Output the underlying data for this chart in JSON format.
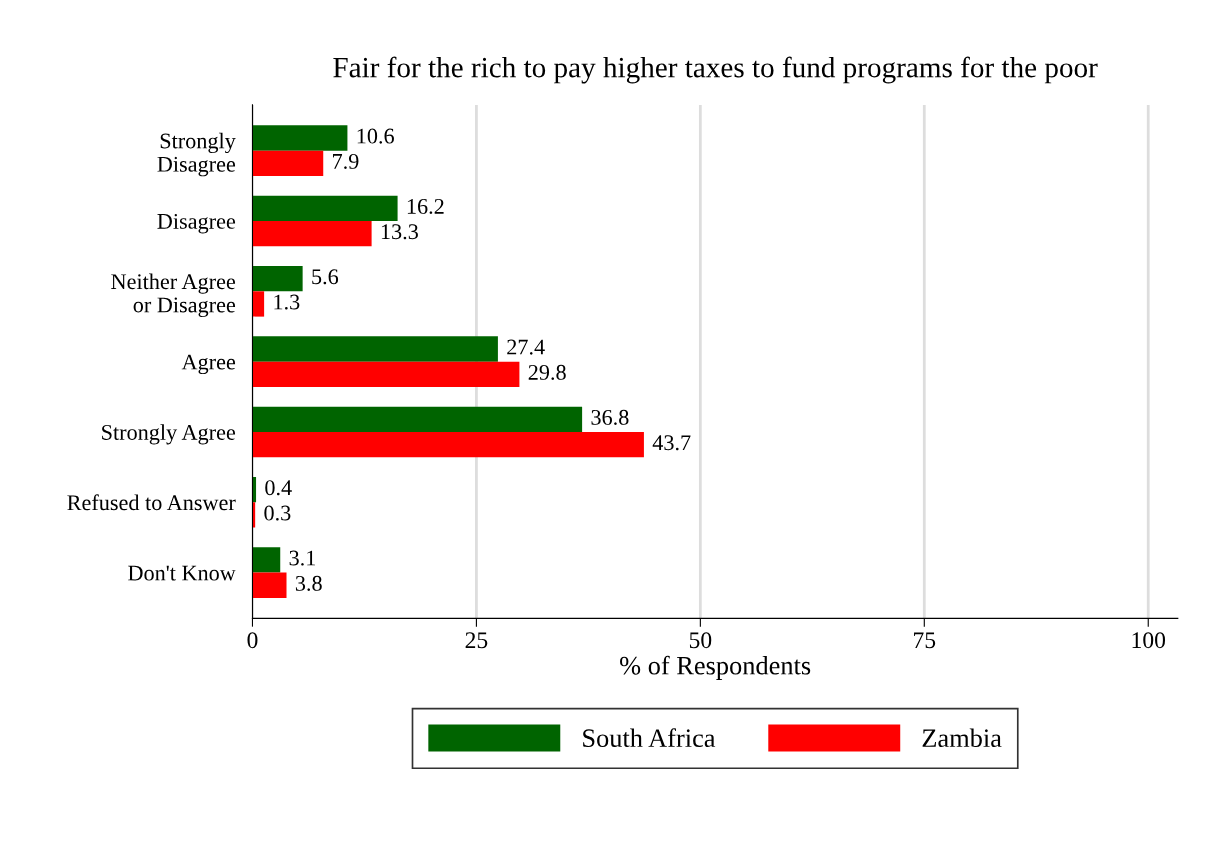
{
  "chart_data": {
    "type": "bar",
    "orientation": "horizontal",
    "title": "Fair for the rich to pay higher taxes to fund programs for the poor",
    "xlabel": "% of Respondents",
    "categories": [
      "Strongly\nDisagree",
      "Disagree",
      "Neither Agree\nor Disagree",
      "Agree",
      "Strongly Agree",
      "Refused to Answer",
      "Don't Know"
    ],
    "series": [
      {
        "name": "South Africa",
        "color": "#006400",
        "values": [
          10.6,
          16.2,
          5.6,
          27.4,
          36.8,
          0.4,
          3.1
        ]
      },
      {
        "name": "Zambia",
        "color": "#ff0000",
        "values": [
          7.9,
          13.3,
          1.3,
          29.8,
          43.7,
          0.3,
          3.8
        ]
      }
    ],
    "xlim": [
      0,
      103.3
    ],
    "xticks": [
      0,
      25,
      50,
      75,
      100
    ],
    "grid": "x",
    "legend": "bottom",
    "data_labels": true
  }
}
